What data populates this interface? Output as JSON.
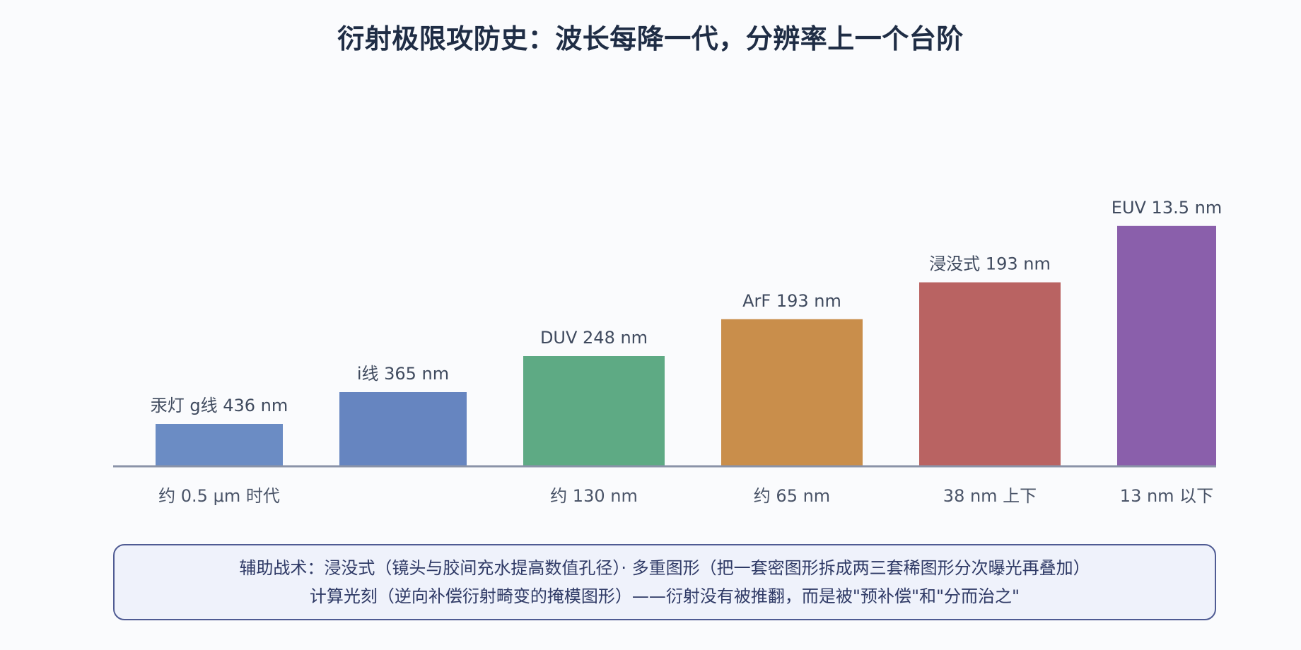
{
  "title": "衍射极限攻防史：波长每降一代，分辨率上一个台阶",
  "chart_data": {
    "type": "bar",
    "title": "衍射极限攻防史：波长每降一代，分辨率上一个台阶",
    "categories": [
      "汞灯 g线 436 nm",
      "i线 365 nm",
      "DUV 248 nm",
      "ArF 193 nm",
      "浸没式 193 nm",
      "EUV 13.5 nm"
    ],
    "bar_labels": [
      "汞灯 g线 436 nm",
      "i线 365 nm",
      "DUV 248 nm",
      "ArF 193 nm",
      "浸没式 193 nm",
      "EUV 13.5 nm"
    ],
    "x_labels": [
      "约 0.5 μm 时代",
      "",
      "约 130 nm",
      "约 65 nm",
      "38 nm 上下",
      "13 nm 以下"
    ],
    "values": [
      1.0,
      1.75,
      2.6,
      3.47,
      4.34,
      5.67
    ],
    "colors": [
      "#6b8cc4",
      "#6685c0",
      "#5eaa84",
      "#c98e4b",
      "#b96362",
      "#8a5fab"
    ],
    "axis_color": "#8a93a8",
    "xlabel": "",
    "ylabel": ""
  },
  "notes": {
    "line1": "辅助战术：浸没式（镜头与胶间充水提高数值孔径）· 多重图形（把一套密图形拆成两三套稀图形分次曝光再叠加）",
    "line2": "计算光刻（逆向补偿衍射畸变的掩模图形）——衍射没有被推翻，而是被\"预补偿\"和\"分而治之\""
  }
}
